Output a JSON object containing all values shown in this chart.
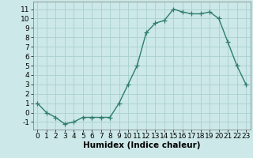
{
  "x": [
    0,
    1,
    2,
    3,
    4,
    5,
    6,
    7,
    8,
    9,
    10,
    11,
    12,
    13,
    14,
    15,
    16,
    17,
    18,
    19,
    20,
    21,
    22,
    23
  ],
  "y": [
    1,
    0,
    -0.5,
    -1.2,
    -1,
    -0.5,
    -0.5,
    -0.5,
    -0.5,
    1,
    3,
    5,
    8.5,
    9.5,
    9.8,
    11,
    10.7,
    10.5,
    10.5,
    10.7,
    10,
    7.5,
    5,
    3
  ],
  "line_color": "#2e7d6e",
  "marker": "+",
  "marker_size": 4,
  "marker_color": "#2e7d6e",
  "bg_color": "#cce8e8",
  "grid_color": "#aacfcf",
  "xlabel": "Humidex (Indice chaleur)",
  "xlim": [
    -0.5,
    23.5
  ],
  "ylim": [
    -1.8,
    11.8
  ],
  "yticks": [
    -1,
    0,
    1,
    2,
    3,
    4,
    5,
    6,
    7,
    8,
    9,
    10,
    11
  ],
  "xticks": [
    0,
    1,
    2,
    3,
    4,
    5,
    6,
    7,
    8,
    9,
    10,
    11,
    12,
    13,
    14,
    15,
    16,
    17,
    18,
    19,
    20,
    21,
    22,
    23
  ],
  "tick_fontsize": 6.5,
  "xlabel_fontsize": 7.5,
  "line_width": 1.0
}
